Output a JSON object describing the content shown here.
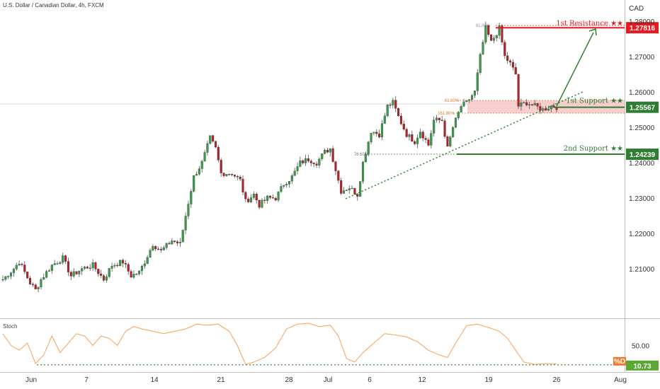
{
  "header": {
    "title": "U.S. Dollar / Canadian Dollar, 4h, FXCM"
  },
  "colors": {
    "up": "#26a69a",
    "down": "#ef5350",
    "up_body": "#3a9a4a",
    "down_body": "#b3202a",
    "resistance": "#e8191f",
    "support": "#2e7d32",
    "zone": "#f7c6c6",
    "stoch": "#f5a05a",
    "fib": "#d08020",
    "arrow": "#2e7d32"
  },
  "chart_data": {
    "type": "candlestick",
    "title": "U.S. Dollar / Canadian Dollar, 4h, FXCM",
    "currency_label": "CAD",
    "y_ticks": [
      "1.28000",
      "1.27000",
      "1.26000",
      "1.25000",
      "1.24000",
      "1.23000",
      "1.22000",
      "1.21000"
    ],
    "ylim": [
      1.196,
      1.286
    ],
    "x_ticks": [
      "Jun",
      "7",
      "14",
      "21",
      "28",
      "Jul",
      "6",
      "12",
      "19",
      "26",
      "Aug"
    ],
    "levels": [
      {
        "name": "1st Resistance ★★",
        "value": 1.27816,
        "tag": "1.27816"
      },
      {
        "name": "1st Support ★★",
        "value": 1.25567,
        "tag": "1.25567"
      },
      {
        "name": "2nd Support ★★",
        "value": 1.24239,
        "tag": "1.24239"
      }
    ],
    "fib_labels": [
      "61.80%",
      "61.80%",
      "161.80%",
      "78.60%"
    ],
    "waypoints": [
      [
        0,
        1.207
      ],
      [
        4,
        1.21
      ],
      [
        6,
        1.212
      ],
      [
        10,
        1.206
      ],
      [
        12,
        1.204
      ],
      [
        14,
        1.207
      ],
      [
        18,
        1.211
      ],
      [
        22,
        1.213
      ],
      [
        25,
        1.208
      ],
      [
        29,
        1.21
      ],
      [
        33,
        1.211
      ],
      [
        37,
        1.207
      ],
      [
        40,
        1.211
      ],
      [
        44,
        1.212
      ],
      [
        47,
        1.208
      ],
      [
        50,
        1.209
      ],
      [
        52,
        1.212
      ],
      [
        55,
        1.217
      ],
      [
        58,
        1.215
      ],
      [
        62,
        1.218
      ],
      [
        65,
        1.217
      ],
      [
        67,
        1.225
      ],
      [
        70,
        1.236
      ],
      [
        73,
        1.24
      ],
      [
        76,
        1.247
      ],
      [
        78,
        1.244
      ],
      [
        80,
        1.237
      ],
      [
        84,
        1.237
      ],
      [
        87,
        1.235
      ],
      [
        89,
        1.229
      ],
      [
        92,
        1.231
      ],
      [
        94,
        1.228
      ],
      [
        97,
        1.23
      ],
      [
        100,
        1.23
      ],
      [
        103,
        1.234
      ],
      [
        106,
        1.236
      ],
      [
        109,
        1.24
      ],
      [
        112,
        1.241
      ],
      [
        115,
        1.24
      ],
      [
        118,
        1.243
      ],
      [
        120,
        1.244
      ],
      [
        122,
        1.238
      ],
      [
        124,
        1.232
      ],
      [
        127,
        1.233
      ],
      [
        130,
        1.231
      ],
      [
        132,
        1.24
      ],
      [
        135,
        1.249
      ],
      [
        138,
        1.248
      ],
      [
        141,
        1.256
      ],
      [
        143,
        1.257
      ],
      [
        145,
        1.253
      ],
      [
        148,
        1.248
      ],
      [
        151,
        1.246
      ],
      [
        153,
        1.249
      ],
      [
        156,
        1.245
      ],
      [
        158,
        1.252
      ],
      [
        161,
        1.252
      ],
      [
        163,
        1.244
      ],
      [
        165,
        1.25
      ],
      [
        168,
        1.256
      ],
      [
        170,
        1.257
      ],
      [
        173,
        1.26
      ],
      [
        175,
        1.27
      ],
      [
        177,
        1.278
      ],
      [
        179,
        1.274
      ],
      [
        182,
        1.278
      ],
      [
        184,
        1.27
      ],
      [
        186,
        1.268
      ],
      [
        188,
        1.265
      ],
      [
        189,
        1.256
      ],
      [
        192,
        1.257
      ],
      [
        195,
        1.256
      ],
      [
        198,
        1.255
      ],
      [
        201,
        1.256
      ],
      [
        203,
        1.2557
      ]
    ],
    "stoch": {
      "name": "Stoch",
      "y_tick": "50.00",
      "value_tag": "10.73",
      "series_tag": "%D",
      "ylim": [
        0,
        100
      ],
      "points": [
        [
          0,
          75
        ],
        [
          3,
          50
        ],
        [
          6,
          40
        ],
        [
          9,
          55
        ],
        [
          12,
          12
        ],
        [
          15,
          30
        ],
        [
          18,
          70
        ],
        [
          21,
          35
        ],
        [
          24,
          55
        ],
        [
          27,
          75
        ],
        [
          30,
          70
        ],
        [
          33,
          50
        ],
        [
          36,
          70
        ],
        [
          39,
          65
        ],
        [
          42,
          50
        ],
        [
          45,
          80
        ],
        [
          48,
          90
        ],
        [
          51,
          85
        ],
        [
          55,
          80
        ],
        [
          59,
          75
        ],
        [
          63,
          80
        ],
        [
          67,
          85
        ],
        [
          71,
          95
        ],
        [
          75,
          93
        ],
        [
          79,
          95
        ],
        [
          83,
          80
        ],
        [
          86,
          50
        ],
        [
          89,
          10
        ],
        [
          92,
          15
        ],
        [
          96,
          25
        ],
        [
          100,
          45
        ],
        [
          104,
          85
        ],
        [
          108,
          95
        ],
        [
          112,
          97
        ],
        [
          116,
          90
        ],
        [
          120,
          93
        ],
        [
          123,
          70
        ],
        [
          126,
          22
        ],
        [
          129,
          15
        ],
        [
          132,
          35
        ],
        [
          136,
          55
        ],
        [
          140,
          75
        ],
        [
          144,
          72
        ],
        [
          148,
          68
        ],
        [
          152,
          58
        ],
        [
          156,
          40
        ],
        [
          160,
          30
        ],
        [
          163,
          25
        ],
        [
          166,
          55
        ],
        [
          170,
          92
        ],
        [
          174,
          95
        ],
        [
          178,
          88
        ],
        [
          182,
          80
        ],
        [
          185,
          65
        ],
        [
          188,
          40
        ],
        [
          191,
          15
        ],
        [
          195,
          10
        ],
        [
          199,
          12
        ],
        [
          203,
          11
        ]
      ]
    }
  }
}
